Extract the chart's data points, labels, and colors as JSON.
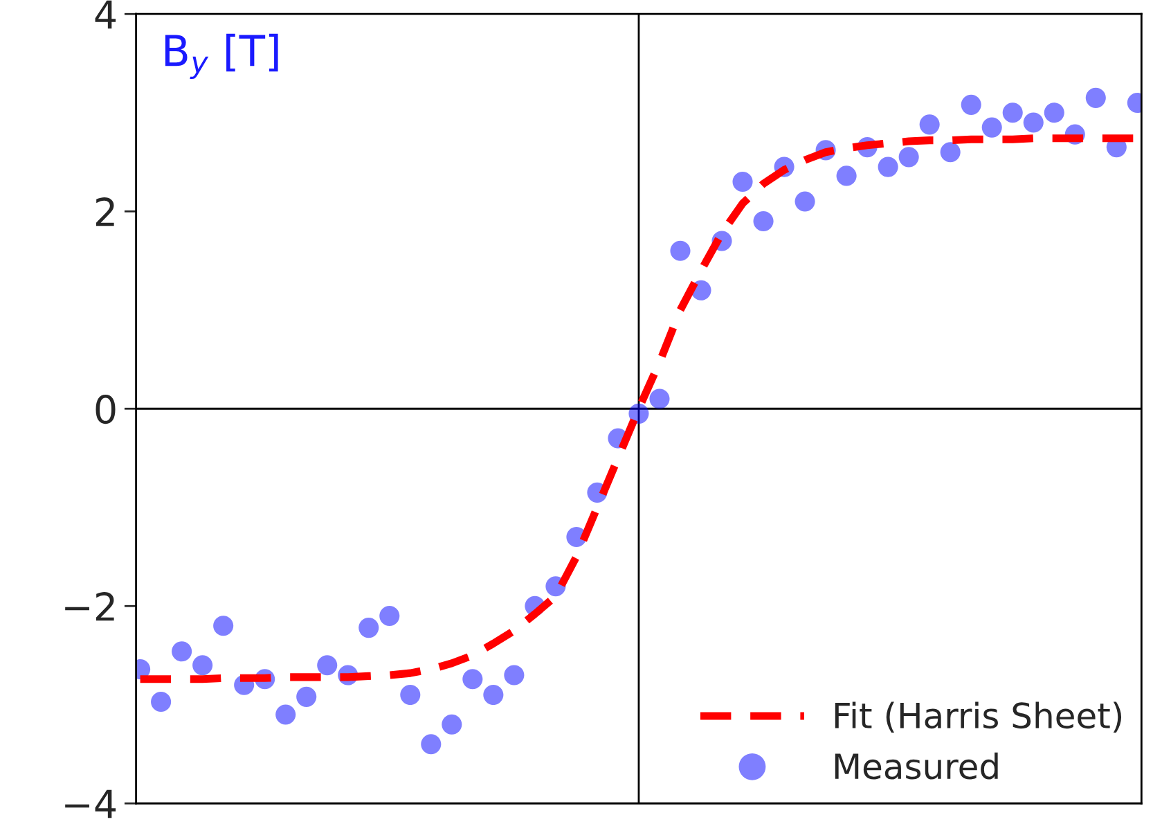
{
  "chart_data": {
    "type": "scatter",
    "annotations": [
      "B$_{y}$ [T]"
    ],
    "categories": [
      null,
      null,
      null,
      null,
      null,
      null,
      null,
      null,
      null,
      null,
      null,
      null,
      null,
      null,
      null,
      null,
      null,
      null,
      null,
      null,
      null,
      null,
      null,
      null,
      null,
      null,
      null,
      null,
      null,
      null,
      null,
      null,
      null,
      null,
      null,
      null,
      null,
      null,
      null,
      null,
      null,
      null,
      null,
      null,
      null,
      null,
      null,
      null,
      null
    ],
    "ylim": [
      -4,
      4
    ],
    "yticks": [
      {
        "value": -4,
        "label": "−4"
      },
      {
        "value": -2,
        "label": "−2"
      },
      0,
      2,
      4
    ],
    "tick_labels": "y",
    "grid": false,
    "legend": "bottom right",
    "ref_lines": [
      {
        "axis": "x",
        "value": null,
        "color": "#000000"
      },
      {
        "axis": "y",
        "value": 0,
        "color": "#000000"
      }
    ],
    "series": [
      {
        "name": "Fit (Harris Sheet)",
        "type": "line",
        "color": "#ff0000",
        "line_style": "dashed",
        "marker": "none",
        "values": [
          -2.74,
          -2.74,
          -2.74,
          -2.74,
          -2.73,
          -2.73,
          -2.73,
          -2.72,
          -2.72,
          -2.72,
          -2.72,
          -2.71,
          -2.7,
          -2.68,
          -2.64,
          -2.58,
          -2.5,
          -2.38,
          -2.25,
          -2.08,
          -1.9,
          -1.5,
          -1.0,
          -0.5,
          0.0,
          0.47,
          1.0,
          1.4,
          1.78,
          2.08,
          2.28,
          2.42,
          2.52,
          2.6,
          2.64,
          2.67,
          2.69,
          2.71,
          2.72,
          2.72,
          2.73,
          2.73,
          2.73,
          2.74,
          2.74,
          2.74,
          2.74,
          2.74,
          2.74
        ]
      },
      {
        "name": "Measured",
        "color": "#0000ff",
        "marker": "circle",
        "values": [
          -2.64,
          -2.97,
          -2.46,
          -2.6,
          -2.2,
          -2.8,
          -2.74,
          -3.1,
          -2.92,
          -2.6,
          -2.7,
          -2.22,
          -2.1,
          -2.9,
          -3.4,
          -3.2,
          -2.74,
          -2.9,
          -2.7,
          -2.0,
          -1.8,
          -1.3,
          -0.85,
          -0.3,
          -0.05,
          0.1,
          1.6,
          1.2,
          1.7,
          2.3,
          1.9,
          2.45,
          2.1,
          2.62,
          2.36,
          2.65,
          2.45,
          2.55,
          2.88,
          2.6,
          3.08,
          2.85,
          3.0,
          2.9,
          3.0,
          2.78,
          3.15,
          2.65,
          3.1
        ]
      }
    ]
  }
}
